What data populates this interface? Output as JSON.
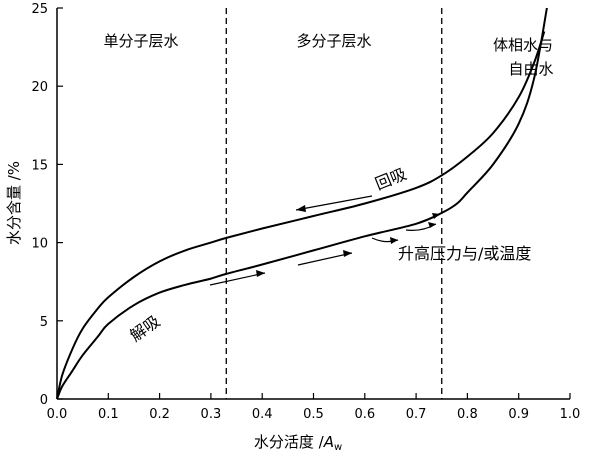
{
  "chart_data": {
    "type": "line",
    "xlabel": {
      "main": "水分活度 /",
      "var": "A",
      "sub": "w"
    },
    "ylabel": "水分含量 /%",
    "xlim": [
      0.0,
      1.0
    ],
    "ylim": [
      0,
      25
    ],
    "x_ticks": [
      "0.0",
      "0.1",
      "0.2",
      "0.3",
      "0.4",
      "0.5",
      "0.6",
      "0.7",
      "0.8",
      "0.9",
      "1.0"
    ],
    "y_ticks": [
      "0",
      "5",
      "10",
      "15",
      "20",
      "25"
    ],
    "grid": false,
    "series": [
      {
        "name": "",
        "x": [
          0.0,
          0.01,
          0.03,
          0.05,
          0.08,
          0.1,
          0.15,
          0.2,
          0.25,
          0.3,
          0.33,
          0.4,
          0.5,
          0.6,
          0.7,
          0.75,
          0.8,
          0.85,
          0.9,
          0.93,
          0.95
        ],
        "y": [
          0,
          1.5,
          3.2,
          4.5,
          5.8,
          6.5,
          7.8,
          8.8,
          9.5,
          10.0,
          10.3,
          10.9,
          11.7,
          12.5,
          13.5,
          14.3,
          15.5,
          17.0,
          19.3,
          21.5,
          23.5
        ]
      },
      {
        "name": "",
        "x": [
          0.0,
          0.01,
          0.03,
          0.05,
          0.08,
          0.1,
          0.15,
          0.2,
          0.25,
          0.3,
          0.33,
          0.4,
          0.5,
          0.6,
          0.7,
          0.75,
          0.78,
          0.8,
          0.85,
          0.9,
          0.93,
          0.955
        ],
        "y": [
          0,
          0.8,
          1.8,
          2.8,
          4.0,
          4.8,
          6.0,
          6.8,
          7.3,
          7.7,
          8.0,
          8.6,
          9.5,
          10.4,
          11.2,
          11.9,
          12.5,
          13.2,
          15.0,
          17.6,
          20.5,
          25.0
        ]
      }
    ],
    "regions": [
      {
        "label": "单分子层水",
        "x_center": 0.165
      },
      {
        "label": "多分子层水",
        "x_center": 0.54
      },
      {
        "label_lines": [
          "体相水与",
          "自由水"
        ],
        "x_center": 0.895
      }
    ],
    "vlines": [
      0.33,
      0.75
    ],
    "annotations": {
      "desorption": "回吸",
      "adsorption": "解吸",
      "pressure": "升高压力与/或温度"
    }
  }
}
